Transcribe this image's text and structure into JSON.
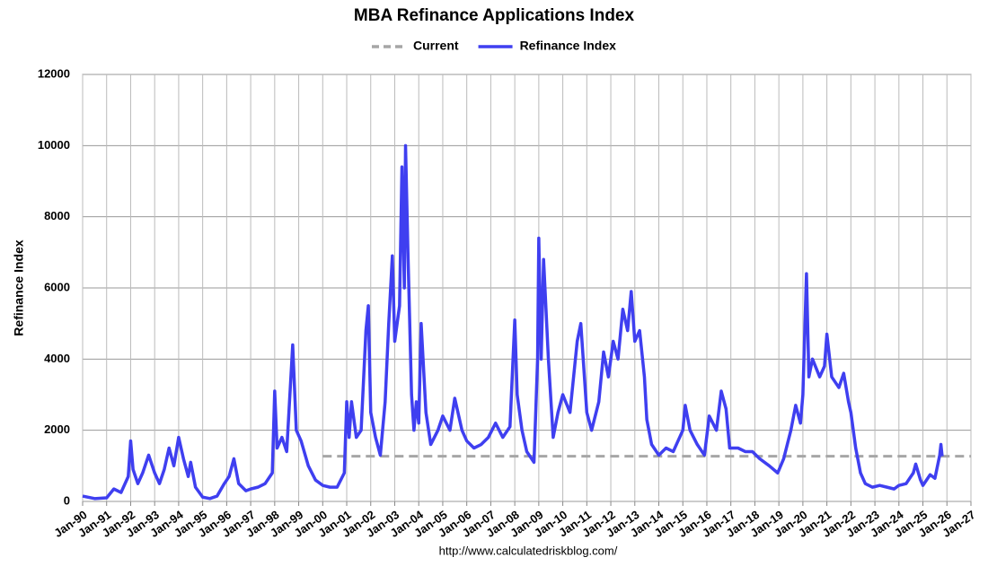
{
  "chart_data": {
    "type": "line",
    "title": "MBA Refinance Applications Index",
    "ylabel": "Refinance Index",
    "source": "http://www.calculatedriskblog.com/",
    "xlim": [
      1990,
      2027
    ],
    "ylim": [
      0,
      12000
    ],
    "yticks": [
      0,
      2000,
      4000,
      6000,
      8000,
      10000,
      12000
    ],
    "xticks": [
      {
        "value": 1990,
        "label": "Jan-90"
      },
      {
        "value": 1991,
        "label": "Jan-91"
      },
      {
        "value": 1992,
        "label": "Jan-92"
      },
      {
        "value": 1993,
        "label": "Jan-93"
      },
      {
        "value": 1994,
        "label": "Jan-94"
      },
      {
        "value": 1995,
        "label": "Jan-95"
      },
      {
        "value": 1996,
        "label": "Jan-96"
      },
      {
        "value": 1997,
        "label": "Jan-97"
      },
      {
        "value": 1998,
        "label": "Jan-98"
      },
      {
        "value": 1999,
        "label": "Jan-99"
      },
      {
        "value": 2000,
        "label": "Jan-00"
      },
      {
        "value": 2001,
        "label": "Jan-01"
      },
      {
        "value": 2002,
        "label": "Jan-02"
      },
      {
        "value": 2003,
        "label": "Jan-03"
      },
      {
        "value": 2004,
        "label": "Jan-04"
      },
      {
        "value": 2005,
        "label": "Jan-05"
      },
      {
        "value": 2006,
        "label": "Jan-06"
      },
      {
        "value": 2007,
        "label": "Jan-07"
      },
      {
        "value": 2008,
        "label": "Jan-08"
      },
      {
        "value": 2009,
        "label": "Jan-09"
      },
      {
        "value": 2010,
        "label": "Jan-10"
      },
      {
        "value": 2011,
        "label": "Jan-11"
      },
      {
        "value": 2012,
        "label": "Jan-12"
      },
      {
        "value": 2013,
        "label": "Jan-13"
      },
      {
        "value": 2014,
        "label": "Jan-14"
      },
      {
        "value": 2015,
        "label": "Jan-15"
      },
      {
        "value": 2016,
        "label": "Jan-16"
      },
      {
        "value": 2017,
        "label": "Jan-17"
      },
      {
        "value": 2018,
        "label": "Jan-18"
      },
      {
        "value": 2019,
        "label": "Jan-19"
      },
      {
        "value": 2020,
        "label": "Jan-20"
      },
      {
        "value": 2021,
        "label": "Jan-21"
      },
      {
        "value": 2022,
        "label": "Jan-22"
      },
      {
        "value": 2023,
        "label": "Jan-23"
      },
      {
        "value": 2024,
        "label": "Jan-24"
      },
      {
        "value": 2025,
        "label": "Jan-25"
      },
      {
        "value": 2026,
        "label": "Jan-26"
      },
      {
        "value": 2027,
        "label": "Jan-27"
      }
    ],
    "grid": true,
    "series": [
      {
        "name": "Current",
        "color": "#a6a6a6",
        "dashed": true,
        "x": [
          2000,
          2027
        ],
        "values": [
          1270,
          1270
        ]
      },
      {
        "name": "Refinance Index",
        "color": "#3f3ff0",
        "x": [
          1990.0,
          1990.5,
          1991.0,
          1991.3,
          1991.6,
          1991.9,
          1992.0,
          1992.1,
          1992.3,
          1992.5,
          1992.75,
          1993.0,
          1993.2,
          1993.4,
          1993.6,
          1993.8,
          1994.0,
          1994.2,
          1994.4,
          1994.5,
          1994.7,
          1995.0,
          1995.3,
          1995.6,
          1995.9,
          1996.1,
          1996.3,
          1996.5,
          1996.8,
          1997.0,
          1997.3,
          1997.6,
          1997.9,
          1998.0,
          1998.1,
          1998.3,
          1998.5,
          1998.75,
          1998.9,
          1999.1,
          1999.4,
          1999.7,
          2000.0,
          2000.3,
          2000.6,
          2000.9,
          2001.0,
          2001.1,
          2001.2,
          2001.4,
          2001.6,
          2001.8,
          2001.9,
          2002.0,
          2002.2,
          2002.4,
          2002.6,
          2002.75,
          2002.9,
          2003.0,
          2003.2,
          2003.3,
          2003.4,
          2003.45,
          2003.55,
          2003.7,
          2003.8,
          2003.9,
          2004.0,
          2004.1,
          2004.3,
          2004.5,
          2004.8,
          2005.0,
          2005.3,
          2005.5,
          2005.8,
          2006.0,
          2006.3,
          2006.6,
          2006.9,
          2007.2,
          2007.5,
          2007.8,
          2008.0,
          2008.1,
          2008.3,
          2008.5,
          2008.8,
          2008.95,
          2009.0,
          2009.1,
          2009.2,
          2009.4,
          2009.6,
          2009.8,
          2010.0,
          2010.3,
          2010.6,
          2010.75,
          2011.0,
          2011.2,
          2011.5,
          2011.7,
          2011.9,
          2012.1,
          2012.3,
          2012.5,
          2012.7,
          2012.85,
          2013.0,
          2013.2,
          2013.4,
          2013.5,
          2013.7,
          2014.0,
          2014.3,
          2014.6,
          2015.0,
          2015.1,
          2015.3,
          2015.6,
          2015.9,
          2016.1,
          2016.4,
          2016.6,
          2016.8,
          2016.95,
          2017.3,
          2017.6,
          2017.9,
          2018.2,
          2018.6,
          2018.95,
          2019.2,
          2019.5,
          2019.7,
          2019.9,
          2020.0,
          2020.15,
          2020.25,
          2020.4,
          2020.7,
          2020.9,
          2021.0,
          2021.2,
          2021.5,
          2021.7,
          2021.9,
          2022.0,
          2022.2,
          2022.4,
          2022.6,
          2022.9,
          2023.2,
          2023.5,
          2023.8,
          2024.0,
          2024.3,
          2024.6,
          2024.7,
          2024.9,
          2025.0,
          2025.3,
          2025.5,
          2025.7,
          2025.75,
          2025.8
        ],
        "values": [
          150,
          80,
          100,
          350,
          250,
          700,
          1700,
          900,
          500,
          800,
          1300,
          800,
          500,
          900,
          1500,
          1000,
          1800,
          1200,
          700,
          1100,
          400,
          120,
          80,
          150,
          500,
          700,
          1200,
          500,
          300,
          350,
          400,
          500,
          800,
          3100,
          1500,
          1800,
          1400,
          4400,
          2000,
          1700,
          1000,
          600,
          450,
          400,
          400,
          800,
          2800,
          1800,
          2800,
          1800,
          2000,
          4800,
          5500,
          2500,
          1800,
          1300,
          2800,
          5000,
          6900,
          4500,
          5500,
          9400,
          6000,
          10000,
          7000,
          3000,
          2000,
          2800,
          2200,
          5000,
          2500,
          1600,
          2000,
          2400,
          2000,
          2900,
          2000,
          1700,
          1500,
          1600,
          1800,
          2200,
          1800,
          2100,
          5100,
          3000,
          2000,
          1400,
          1100,
          4000,
          7400,
          4000,
          6800,
          4000,
          1800,
          2500,
          3000,
          2500,
          4500,
          5000,
          2500,
          2000,
          2800,
          4200,
          3500,
          4500,
          4000,
          5400,
          4800,
          5900,
          4500,
          4800,
          3500,
          2300,
          1600,
          1300,
          1500,
          1400,
          2000,
          2700,
          2000,
          1600,
          1300,
          2400,
          2000,
          3100,
          2600,
          1500,
          1500,
          1400,
          1400,
          1200,
          1000,
          800,
          1200,
          2000,
          2700,
          2200,
          3000,
          6400,
          3500,
          4000,
          3500,
          3800,
          4700,
          3500,
          3200,
          3600,
          2800,
          2500,
          1500,
          800,
          500,
          400,
          450,
          400,
          350,
          450,
          500,
          800,
          1050,
          600,
          450,
          750,
          650,
          1300,
          1600,
          1270
        ]
      }
    ]
  }
}
